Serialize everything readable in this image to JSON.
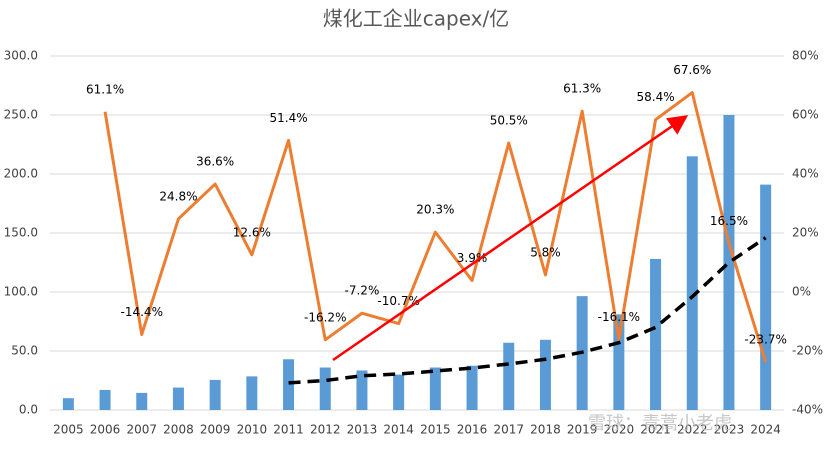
{
  "chart_data": {
    "type": "bar_line",
    "title": "煤化工企业capex/亿",
    "categories": [
      "2005",
      "2006",
      "2007",
      "2008",
      "2009",
      "2010",
      "2011",
      "2012",
      "2013",
      "2014",
      "2015",
      "2016",
      "2017",
      "2018",
      "2019",
      "2020",
      "2021",
      "2022",
      "2023",
      "2024"
    ],
    "series": [
      {
        "type": "bar",
        "color": "#5b9bd5",
        "values": [
          10,
          17,
          14.5,
          19,
          25.5,
          28.5,
          43,
          36,
          33.5,
          30,
          36,
          37.5,
          57,
          59.5,
          96.5,
          81,
          128,
          215,
          250,
          191
        ]
      },
      {
        "type": "line",
        "axis": "y2",
        "color": "#ed7d31",
        "values": [
          null,
          61.1,
          -14.4,
          24.8,
          36.6,
          12.6,
          51.4,
          -16.2,
          -7.2,
          -10.7,
          20.3,
          3.9,
          50.5,
          5.8,
          61.3,
          -16.1,
          58.4,
          67.6,
          16.5,
          -23.7
        ],
        "value_labels": [
          null,
          "61.1%",
          "-14.4%",
          "24.8%",
          "36.6%",
          "12.6%",
          "51.4%",
          "-16.2%",
          "-7.2%",
          "-10.7%",
          "20.3%",
          "3.9%",
          "50.5%",
          "5.8%",
          "61.3%",
          "-16.1%",
          "58.4%",
          "67.6%",
          "16.5%",
          "-23.7%"
        ]
      },
      {
        "type": "dashed",
        "color": "#000000",
        "values": [
          null,
          null,
          null,
          null,
          null,
          null,
          23,
          25,
          29,
          30.5,
          33,
          35.6,
          39,
          43,
          49,
          57,
          70,
          96,
          125,
          146
        ]
      }
    ],
    "ylim": [
      0,
      300
    ],
    "yticks": [
      {
        "value": 0,
        "label": "0.0"
      },
      {
        "value": 50,
        "label": "50.0"
      },
      {
        "value": 100,
        "label": "100.0"
      },
      {
        "value": 150,
        "label": "150.0"
      },
      {
        "value": 200,
        "label": "200.0"
      },
      {
        "value": 250,
        "label": "250.0"
      },
      {
        "value": 300,
        "label": "300.0"
      }
    ],
    "y2lim": [
      -40,
      80
    ],
    "y2ticks": [
      {
        "value": -40,
        "label": "-40%"
      },
      {
        "value": -20,
        "label": "-20%"
      },
      {
        "value": 0,
        "label": "0%"
      },
      {
        "value": 20,
        "label": "20%"
      },
      {
        "value": 40,
        "label": "40%"
      },
      {
        "value": 60,
        "label": "60%"
      },
      {
        "value": 80,
        "label": "80%"
      }
    ],
    "watermark": "雪球：青蒿小老虎"
  }
}
